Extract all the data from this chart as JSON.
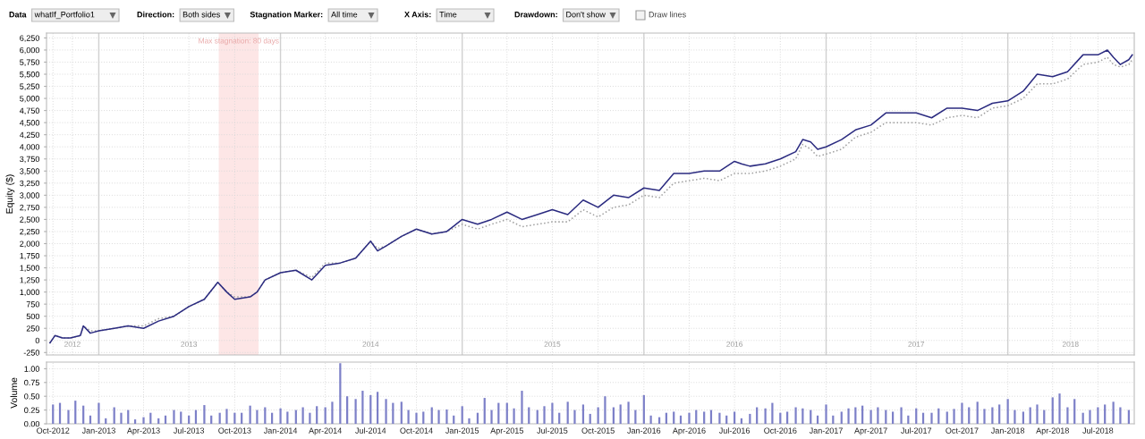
{
  "chart_data": [
    {
      "type": "line",
      "ylabel": "Equity ($)",
      "annotations": [
        "Data",
        "whatIf_Portfolio1",
        "Direction:",
        "Both sides",
        "Stagnation Marker:",
        "All time",
        "X Axis:",
        "Time",
        "Drawdown:",
        "Don't show",
        "Draw lines"
      ],
      "x": [
        "2012-09-25",
        "2012-10-05",
        "2012-10-20",
        "2012-11-05",
        "2012-11-25",
        "2012-12-01",
        "2012-12-15",
        "2013-01-01",
        "2013-02-01",
        "2013-03-01",
        "2013-04-01",
        "2013-05-01",
        "2013-06-01",
        "2013-07-01",
        "2013-08-01",
        "2013-08-28",
        "2013-09-15",
        "2013-10-01",
        "2013-11-01",
        "2013-11-15",
        "2013-12-01",
        "2014-01-01",
        "2014-02-01",
        "2014-03-05",
        "2014-04-01",
        "2014-05-01",
        "2014-06-01",
        "2014-07-01",
        "2014-07-15",
        "2014-08-01",
        "2014-09-01",
        "2014-10-01",
        "2014-11-01",
        "2014-12-01",
        "2015-01-01",
        "2015-02-01",
        "2015-03-01",
        "2015-04-01",
        "2015-05-01",
        "2015-06-01",
        "2015-07-01",
        "2015-08-01",
        "2015-09-01",
        "2015-10-01",
        "2015-11-01",
        "2015-12-01",
        "2016-01-01",
        "2016-02-01",
        "2016-03-01",
        "2016-04-01",
        "2016-05-01",
        "2016-06-01",
        "2016-07-01",
        "2016-07-15",
        "2016-08-01",
        "2016-09-01",
        "2016-10-01",
        "2016-11-01",
        "2016-11-15",
        "2016-12-01",
        "2016-12-15",
        "2017-01-01",
        "2017-02-01",
        "2017-03-01",
        "2017-04-01",
        "2017-05-01",
        "2017-06-01",
        "2017-07-01",
        "2017-08-01",
        "2017-09-01",
        "2017-10-01",
        "2017-11-01",
        "2017-12-01",
        "2018-01-01",
        "2018-02-01",
        "2018-03-01",
        "2018-04-01",
        "2018-05-01",
        "2018-06-01",
        "2018-07-01",
        "2018-07-20",
        "2018-08-01",
        "2018-08-15",
        "2018-09-01",
        "2018-09-08"
      ],
      "series": [
        {
          "color": "#a0a0a0",
          "line_style": "dotted",
          "values": [
            -50,
            100,
            50,
            50,
            100,
            300,
            200,
            200,
            250,
            300,
            300,
            450,
            500,
            700,
            850,
            1200,
            1000,
            900,
            900,
            1000,
            1250,
            1400,
            1450,
            1300,
            1600,
            1600,
            1700,
            2050,
            1900,
            1950,
            2150,
            2300,
            2200,
            2250,
            2400,
            2300,
            2400,
            2500,
            2350,
            2400,
            2450,
            2450,
            2700,
            2550,
            2750,
            2800,
            3000,
            2950,
            3250,
            3300,
            3350,
            3300,
            3450,
            3450,
            3450,
            3500,
            3600,
            3750,
            4050,
            3950,
            3800,
            3850,
            3950,
            4200,
            4300,
            4500,
            4500,
            4500,
            4450,
            4600,
            4650,
            4600,
            4800,
            4850,
            5000,
            5300,
            5300,
            5400,
            5700,
            5750,
            5850,
            5700,
            5650,
            5700,
            5800
          ]
        },
        {
          "color": "#2b2b80",
          "line_style": "solid",
          "values": [
            -50,
            100,
            50,
            50,
            100,
            300,
            150,
            200,
            250,
            300,
            250,
            400,
            500,
            700,
            850,
            1200,
            1000,
            850,
            900,
            1000,
            1250,
            1400,
            1450,
            1250,
            1550,
            1600,
            1700,
            2050,
            1850,
            1950,
            2150,
            2300,
            2200,
            2250,
            2500,
            2400,
            2500,
            2650,
            2500,
            2600,
            2700,
            2600,
            2900,
            2750,
            3000,
            2950,
            3150,
            3100,
            3450,
            3450,
            3500,
            3500,
            3700,
            3650,
            3600,
            3650,
            3750,
            3900,
            4150,
            4100,
            3950,
            4000,
            4150,
            4350,
            4450,
            4700,
            4700,
            4700,
            4600,
            4800,
            4800,
            4750,
            4900,
            4950,
            5150,
            5500,
            5450,
            5550,
            5900,
            5900,
            6000,
            5850,
            5700,
            5800,
            5900
          ]
        }
      ],
      "xlim": [
        "2012-09-18",
        "2018-09-12"
      ],
      "xticks": [
        {
          "value": "2012-10-01",
          "label": null
        },
        {
          "value": "2012-11-09",
          "label": "2012"
        },
        {
          "value": "2013-04-01",
          "label": null
        },
        {
          "value": "2013-07-01",
          "label": "2013"
        },
        {
          "value": "2013-10-01",
          "label": null
        },
        {
          "value": "2014-04-01",
          "label": null
        },
        {
          "value": "2014-07-01",
          "label": "2014"
        },
        {
          "value": "2014-10-01",
          "label": null
        },
        {
          "value": "2015-04-01",
          "label": null
        },
        {
          "value": "2015-07-01",
          "label": "2015"
        },
        {
          "value": "2015-10-01",
          "label": null
        },
        {
          "value": "2016-04-01",
          "label": null
        },
        {
          "value": "2016-07-01",
          "label": "2016"
        },
        {
          "value": "2016-10-01",
          "label": null
        },
        {
          "value": "2017-04-01",
          "label": null
        },
        {
          "value": "2017-07-01",
          "label": "2017"
        },
        {
          "value": "2017-10-01",
          "label": null
        },
        {
          "value": "2018-04-01",
          "label": null
        },
        {
          "value": "2018-05-07",
          "label": "2018"
        },
        {
          "value": "2018-07-01",
          "label": null
        }
      ],
      "ylim": [
        -300,
        6350
      ],
      "yticks": [
        -250,
        0,
        250,
        500,
        750,
        {
          "value": 1000,
          "label": "1,000"
        },
        {
          "value": 1250,
          "label": "1,250"
        },
        {
          "value": 1500,
          "label": "1,500"
        },
        {
          "value": 1750,
          "label": "1,750"
        },
        {
          "value": 2000,
          "label": "2,000"
        },
        {
          "value": 2250,
          "label": "2,250"
        },
        {
          "value": 2500,
          "label": "2,500"
        },
        {
          "value": 2750,
          "label": "2,750"
        },
        {
          "value": 3000,
          "label": "3,000"
        },
        {
          "value": 3250,
          "label": "3,250"
        },
        {
          "value": 3500,
          "label": "3,500"
        },
        {
          "value": 3750,
          "label": "3,750"
        },
        {
          "value": 4000,
          "label": "4,000"
        },
        {
          "value": 4250,
          "label": "4,250"
        },
        {
          "value": 4500,
          "label": "4,500"
        },
        {
          "value": 4750,
          "label": "4,750"
        },
        {
          "value": 5000,
          "label": "5,000"
        },
        {
          "value": 5250,
          "label": "5,250"
        },
        {
          "value": 5500,
          "label": "5,500"
        },
        {
          "value": 5750,
          "label": "5,750"
        },
        {
          "value": 6000,
          "label": "6,000"
        },
        {
          "value": 6250,
          "label": "6,250"
        }
      ],
      "grid": true,
      "bands": [
        {
          "axis": "x",
          "from": "2013-08-30",
          "to": "2013-11-18",
          "label": "Max stagnation: 80 days",
          "color": "#fde6e6"
        }
      ],
      "ref_lines": [
        {
          "axis": "x",
          "value": "2013-01-01",
          "color": "#d0d0d0"
        },
        {
          "axis": "x",
          "value": "2014-01-01",
          "color": "#d0d0d0"
        },
        {
          "axis": "x",
          "value": "2015-01-01",
          "color": "#d0d0d0"
        },
        {
          "axis": "x",
          "value": "2016-01-01",
          "color": "#d0d0d0"
        },
        {
          "axis": "x",
          "value": "2017-01-01",
          "color": "#d0d0d0"
        },
        {
          "axis": "x",
          "value": "2018-01-01",
          "color": "#d0d0d0"
        }
      ]
    },
    {
      "type": "bar",
      "ylabel": "Volume",
      "x": [
        "2012-10-01",
        "2012-10-15",
        "2012-11-01",
        "2012-11-15",
        "2012-12-01",
        "2012-12-15",
        "2013-01-01",
        "2013-01-15",
        "2013-02-01",
        "2013-02-15",
        "2013-03-01",
        "2013-03-15",
        "2013-04-01",
        "2013-04-15",
        "2013-05-01",
        "2013-05-15",
        "2013-06-01",
        "2013-06-15",
        "2013-07-01",
        "2013-07-15",
        "2013-08-01",
        "2013-08-15",
        "2013-09-01",
        "2013-09-15",
        "2013-10-01",
        "2013-10-15",
        "2013-11-01",
        "2013-11-15",
        "2013-12-01",
        "2013-12-15",
        "2014-01-01",
        "2014-01-15",
        "2014-02-01",
        "2014-02-15",
        "2014-03-01",
        "2014-03-15",
        "2014-04-01",
        "2014-04-15",
        "2014-05-01",
        "2014-05-15",
        "2014-06-01",
        "2014-06-15",
        "2014-07-01",
        "2014-07-15",
        "2014-08-01",
        "2014-08-15",
        "2014-09-01",
        "2014-09-15",
        "2014-10-01",
        "2014-10-15",
        "2014-11-01",
        "2014-11-15",
        "2014-12-01",
        "2014-12-15",
        "2015-01-01",
        "2015-01-15",
        "2015-02-01",
        "2015-02-15",
        "2015-03-01",
        "2015-03-15",
        "2015-04-01",
        "2015-04-15",
        "2015-05-01",
        "2015-05-15",
        "2015-06-01",
        "2015-06-15",
        "2015-07-01",
        "2015-07-15",
        "2015-08-01",
        "2015-08-15",
        "2015-09-01",
        "2015-09-15",
        "2015-10-01",
        "2015-10-15",
        "2015-11-01",
        "2015-11-15",
        "2015-12-01",
        "2015-12-15",
        "2016-01-01",
        "2016-01-15",
        "2016-02-01",
        "2016-02-15",
        "2016-03-01",
        "2016-03-15",
        "2016-04-01",
        "2016-04-15",
        "2016-05-01",
        "2016-05-15",
        "2016-06-01",
        "2016-06-15",
        "2016-07-01",
        "2016-07-15",
        "2016-08-01",
        "2016-08-15",
        "2016-09-01",
        "2016-09-15",
        "2016-10-01",
        "2016-10-15",
        "2016-11-01",
        "2016-11-15",
        "2016-12-01",
        "2016-12-15",
        "2017-01-01",
        "2017-01-15",
        "2017-02-01",
        "2017-02-15",
        "2017-03-01",
        "2017-03-15",
        "2017-04-01",
        "2017-04-15",
        "2017-05-01",
        "2017-05-15",
        "2017-06-01",
        "2017-06-15",
        "2017-07-01",
        "2017-07-15",
        "2017-08-01",
        "2017-08-15",
        "2017-09-01",
        "2017-09-15",
        "2017-10-01",
        "2017-10-15",
        "2017-11-01",
        "2017-11-15",
        "2017-12-01",
        "2017-12-15",
        "2018-01-01",
        "2018-01-15",
        "2018-02-01",
        "2018-02-15",
        "2018-03-01",
        "2018-03-15",
        "2018-04-01",
        "2018-04-15",
        "2018-05-01",
        "2018-05-15",
        "2018-06-01",
        "2018-06-15",
        "2018-07-01",
        "2018-07-15",
        "2018-08-01",
        "2018-08-15",
        "2018-09-01"
      ],
      "series": [
        {
          "color": "#7d80c8",
          "values": [
            0.35,
            0.38,
            0.25,
            0.42,
            0.33,
            0.15,
            0.38,
            0.1,
            0.3,
            0.2,
            0.25,
            0.08,
            0.12,
            0.2,
            0.1,
            0.15,
            0.25,
            0.22,
            0.15,
            0.25,
            0.34,
            0.15,
            0.2,
            0.27,
            0.2,
            0.2,
            0.33,
            0.25,
            0.3,
            0.2,
            0.28,
            0.22,
            0.25,
            0.3,
            0.2,
            0.32,
            0.3,
            0.4,
            1.1,
            0.5,
            0.45,
            0.6,
            0.52,
            0.58,
            0.45,
            0.38,
            0.4,
            0.25,
            0.2,
            0.22,
            0.3,
            0.25,
            0.26,
            0.15,
            0.32,
            0.1,
            0.2,
            0.47,
            0.25,
            0.38,
            0.38,
            0.28,
            0.6,
            0.3,
            0.25,
            0.32,
            0.38,
            0.2,
            0.4,
            0.25,
            0.35,
            0.18,
            0.3,
            0.5,
            0.3,
            0.35,
            0.4,
            0.25,
            0.52,
            0.15,
            0.12,
            0.2,
            0.22,
            0.15,
            0.2,
            0.25,
            0.22,
            0.25,
            0.2,
            0.15,
            0.22,
            0.1,
            0.18,
            0.3,
            0.28,
            0.38,
            0.2,
            0.22,
            0.3,
            0.28,
            0.25,
            0.15,
            0.35,
            0.15,
            0.22,
            0.28,
            0.3,
            0.33,
            0.25,
            0.3,
            0.25,
            0.22,
            0.3,
            0.15,
            0.28,
            0.2,
            0.2,
            0.28,
            0.22,
            0.27,
            0.38,
            0.3,
            0.4,
            0.27,
            0.3,
            0.35,
            0.45,
            0.25,
            0.22,
            0.3,
            0.35,
            0.25,
            0.48,
            0.55,
            0.3,
            0.45,
            0.2,
            0.25,
            0.3,
            0.35,
            0.4,
            0.3,
            0.25
          ]
        }
      ],
      "xlim": [
        "2012-09-18",
        "2018-09-12"
      ],
      "xticks": [
        {
          "value": "2012-10-01",
          "label": "Oct-2012"
        },
        {
          "value": "2013-01-01",
          "label": "Jan-2013"
        },
        {
          "value": "2013-04-01",
          "label": "Apr-2013"
        },
        {
          "value": "2013-07-01",
          "label": "Jul-2013"
        },
        {
          "value": "2013-10-01",
          "label": "Oct-2013"
        },
        {
          "value": "2014-01-01",
          "label": "Jan-2014"
        },
        {
          "value": "2014-04-01",
          "label": "Apr-2014"
        },
        {
          "value": "2014-07-01",
          "label": "Jul-2014"
        },
        {
          "value": "2014-10-01",
          "label": "Oct-2014"
        },
        {
          "value": "2015-01-01",
          "label": "Jan-2015"
        },
        {
          "value": "2015-04-01",
          "label": "Apr-2015"
        },
        {
          "value": "2015-07-01",
          "label": "Jul-2015"
        },
        {
          "value": "2015-10-01",
          "label": "Oct-2015"
        },
        {
          "value": "2016-01-01",
          "label": "Jan-2016"
        },
        {
          "value": "2016-04-01",
          "label": "Apr-2016"
        },
        {
          "value": "2016-07-01",
          "label": "Jul-2016"
        },
        {
          "value": "2016-10-01",
          "label": "Oct-2016"
        },
        {
          "value": "2017-01-01",
          "label": "Jan-2017"
        },
        {
          "value": "2017-04-01",
          "label": "Apr-2017"
        },
        {
          "value": "2017-07-01",
          "label": "Jul-2017"
        },
        {
          "value": "2017-10-01",
          "label": "Oct-2017"
        },
        {
          "value": "2018-01-01",
          "label": "Jan-2018"
        },
        {
          "value": "2018-04-01",
          "label": "Apr-2018"
        },
        {
          "value": "2018-07-01",
          "label": "Jul-2018"
        }
      ],
      "ylim": [
        0,
        1.12
      ],
      "yticks": [
        {
          "value": 0,
          "label": "0.00"
        },
        {
          "value": 0.25,
          "label": "0.25"
        },
        {
          "value": 0.5,
          "label": "0.50"
        },
        {
          "value": 0.75,
          "label": "0.75"
        },
        {
          "value": 1,
          "label": "1.00"
        }
      ],
      "grid": true
    }
  ]
}
